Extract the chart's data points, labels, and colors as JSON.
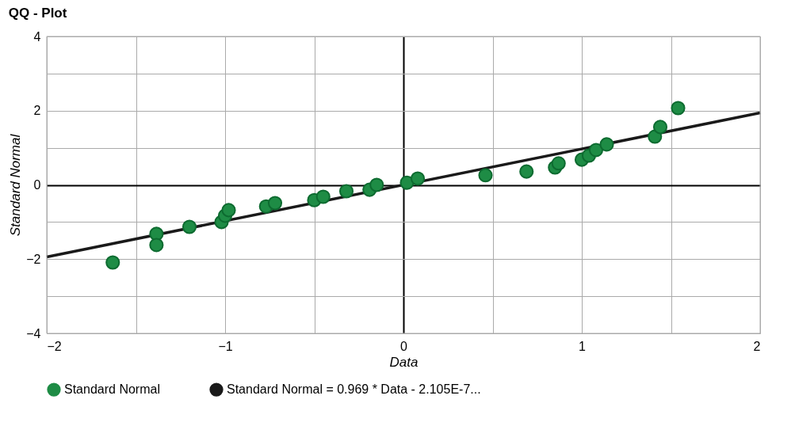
{
  "chart_data": {
    "type": "scatter",
    "title": "QQ - Plot",
    "xlabel": "Data",
    "ylabel": "Standard Normal",
    "xlim": [
      -2,
      2
    ],
    "ylim": [
      -4,
      4
    ],
    "xticks": [
      -2,
      {
        "value": -1.5,
        "label": null
      },
      -1,
      {
        "value": -0.5,
        "label": null
      },
      0,
      {
        "value": 0.5,
        "label": null
      },
      1,
      {
        "value": 1.5,
        "label": null
      },
      2
    ],
    "yticks": [
      -4,
      {
        "value": -3,
        "label": null
      },
      -2,
      {
        "value": -1,
        "label": null
      },
      0,
      {
        "value": 1,
        "label": null
      },
      2,
      {
        "value": 3,
        "label": null
      },
      4
    ],
    "grid": true,
    "legend": "bottom",
    "series": [
      {
        "name": "Standard Normal",
        "marker": "circle",
        "color": "#1e8c45",
        "x": [
          -1.63,
          -1.385,
          -1.385,
          -1.2,
          -1.02,
          -1.0,
          -0.98,
          -0.77,
          -0.72,
          -0.5,
          -0.45,
          -0.32,
          -0.19,
          -0.15,
          0.02,
          0.08,
          0.46,
          0.69,
          0.85,
          0.87,
          1.0,
          1.04,
          1.08,
          1.14,
          1.41,
          1.44,
          1.54
        ],
        "values": [
          -2.09,
          -1.32,
          -1.62,
          -1.13,
          -1.0,
          -0.83,
          -0.68,
          -0.58,
          -0.49,
          -0.41,
          -0.32,
          -0.17,
          -0.13,
          0.0,
          0.06,
          0.17,
          0.26,
          0.36,
          0.47,
          0.58,
          0.68,
          0.79,
          0.94,
          1.09,
          1.3,
          1.56,
          2.07
        ]
      },
      {
        "name": "Standard Normal = 0.969 * Data - 2.105E-7...",
        "type": "line",
        "color": "#1a1a1a",
        "line_style": "solid",
        "x": [
          -2,
          2
        ],
        "values": [
          -1.94,
          1.94
        ]
      }
    ]
  }
}
